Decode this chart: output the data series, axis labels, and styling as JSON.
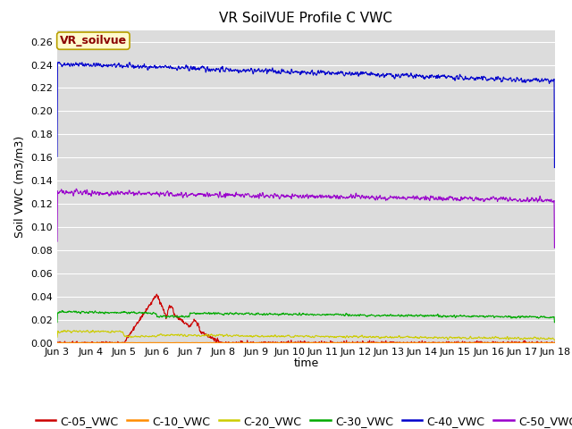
{
  "title": "VR SoilVUE Profile C VWC",
  "ylabel": "Soil VWC (m3/m3)",
  "xlabel": "time",
  "ylim": [
    0.0,
    0.27
  ],
  "yticks": [
    0.0,
    0.02,
    0.04,
    0.06,
    0.08,
    0.1,
    0.12,
    0.14,
    0.16,
    0.18,
    0.2,
    0.22,
    0.24,
    0.26
  ],
  "xtick_labels": [
    "Jun 3",
    "Jun 4",
    "Jun 5",
    "Jun 6",
    "Jun 7",
    "Jun 8",
    "Jun 9",
    "Jun 10",
    "Jun 11",
    "Jun 12",
    "Jun 13",
    "Jun 14",
    "Jun 15",
    "Jun 16",
    "Jun 17",
    "Jun 18"
  ],
  "annotation_text": "VR_soilvue",
  "annotation_color": "#8B0000",
  "annotation_bg": "#FFFACD",
  "annotation_border": "#B8A000",
  "series": {
    "C-05_VWC": {
      "color": "#CC0000",
      "lw": 0.8
    },
    "C-10_VWC": {
      "color": "#FF8C00",
      "lw": 0.8
    },
    "C-20_VWC": {
      "color": "#CCCC00",
      "lw": 0.8
    },
    "C-30_VWC": {
      "color": "#00AA00",
      "lw": 0.8
    },
    "C-40_VWC": {
      "color": "#0000CC",
      "lw": 0.8
    },
    "C-50_VWC": {
      "color": "#9900CC",
      "lw": 0.8
    }
  },
  "plot_bg": "#DCDCDC",
  "fig_bg": "#FFFFFF",
  "grid_color": "#FFFFFF",
  "title_fontsize": 11,
  "label_fontsize": 9,
  "tick_fontsize": 8,
  "legend_fontsize": 9
}
